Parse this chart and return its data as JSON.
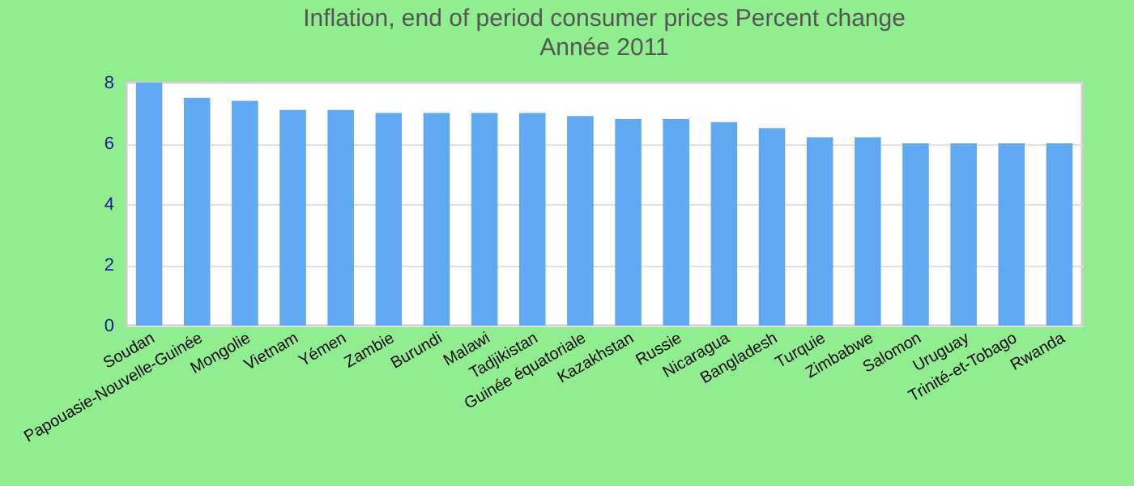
{
  "chart_data": {
    "type": "bar",
    "title": "Inflation, end of period consumer prices  Percent change",
    "subtitle": "Année 2011",
    "categories": [
      "Soudan",
      "Papouasie-Nouvelle-Guinée",
      "Mongolie",
      "Vietnam",
      "Yémen",
      "Zambie",
      "Burundi",
      "Malawi",
      "Tadjikistan",
      "Guinée équatoriale",
      "Kazakhstan",
      "Russie",
      "Nicaragua",
      "Bangladesh",
      "Turquie",
      "Zimbabwe",
      "Salomon",
      "Uruguay",
      "Trinité-et-Tobago",
      "Rwanda"
    ],
    "values": [
      8.0,
      7.5,
      7.4,
      7.1,
      7.1,
      7.0,
      7.0,
      7.0,
      7.0,
      6.9,
      6.8,
      6.8,
      6.7,
      6.5,
      6.2,
      6.2,
      6.0,
      6.0,
      6.0,
      6.0
    ],
    "color": "#61a8f3",
    "ylim": [
      0,
      8
    ],
    "yticks": [
      0,
      2,
      4,
      6,
      8
    ],
    "grid": "y"
  }
}
